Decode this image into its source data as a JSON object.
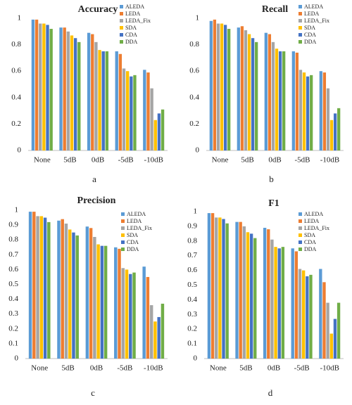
{
  "chart_data": [
    {
      "type": "bar",
      "title": "Accuracy",
      "caption": "a",
      "categories": [
        "None",
        "5dB",
        "0dB",
        "-5dB",
        "-10dB"
      ],
      "series": [
        {
          "name": "ALEDA",
          "color": "#5b9bd5",
          "values": [
            0.99,
            0.93,
            0.89,
            0.75,
            0.61
          ]
        },
        {
          "name": "LEDA",
          "color": "#ed7d31",
          "values": [
            0.99,
            0.93,
            0.88,
            0.73,
            0.59
          ]
        },
        {
          "name": "LEDA_Fix",
          "color": "#a5a5a5",
          "values": [
            0.96,
            0.9,
            0.82,
            0.62,
            0.47
          ]
        },
        {
          "name": "SDA",
          "color": "#ffc000",
          "values": [
            0.96,
            0.87,
            0.76,
            0.6,
            0.23
          ]
        },
        {
          "name": "CDA",
          "color": "#4472c4",
          "values": [
            0.95,
            0.85,
            0.75,
            0.56,
            0.28
          ]
        },
        {
          "name": "DDA",
          "color": "#70ad47",
          "values": [
            0.92,
            0.82,
            0.75,
            0.57,
            0.31
          ]
        }
      ],
      "ylim": [
        0,
        1
      ],
      "yticks": [
        0,
        0.2,
        0.4,
        0.6,
        0.8,
        1
      ],
      "legend": "upper right"
    },
    {
      "type": "bar",
      "title": "Recall",
      "caption": "b",
      "categories": [
        "None",
        "5dB",
        "0dB",
        "-5dB",
        "-10dB"
      ],
      "series": [
        {
          "name": "ALEDA",
          "color": "#5b9bd5",
          "values": [
            0.98,
            0.93,
            0.89,
            0.75,
            0.6
          ]
        },
        {
          "name": "LEDA",
          "color": "#ed7d31",
          "values": [
            0.99,
            0.94,
            0.88,
            0.74,
            0.59
          ]
        },
        {
          "name": "LEDA_Fix",
          "color": "#a5a5a5",
          "values": [
            0.96,
            0.91,
            0.82,
            0.61,
            0.47
          ]
        },
        {
          "name": "SDA",
          "color": "#ffc000",
          "values": [
            0.96,
            0.88,
            0.77,
            0.59,
            0.23
          ]
        },
        {
          "name": "CDA",
          "color": "#4472c4",
          "values": [
            0.95,
            0.85,
            0.75,
            0.56,
            0.28
          ]
        },
        {
          "name": "DDA",
          "color": "#70ad47",
          "values": [
            0.92,
            0.82,
            0.75,
            0.57,
            0.32
          ]
        }
      ],
      "ylim": [
        0,
        1
      ],
      "yticks": [
        0,
        0.2,
        0.4,
        0.6,
        0.8,
        1
      ],
      "legend": "upper right"
    },
    {
      "type": "bar",
      "title": "Precision",
      "caption": "c",
      "categories": [
        "None",
        "5dB",
        "0dB",
        "-5dB",
        "-10dB"
      ],
      "series": [
        {
          "name": "ALEDA",
          "color": "#5b9bd5",
          "values": [
            0.99,
            0.93,
            0.89,
            0.75,
            0.62
          ]
        },
        {
          "name": "LEDA",
          "color": "#ed7d31",
          "values": [
            0.99,
            0.94,
            0.88,
            0.74,
            0.55
          ]
        },
        {
          "name": "LEDA_Fix",
          "color": "#a5a5a5",
          "values": [
            0.96,
            0.91,
            0.82,
            0.61,
            0.36
          ]
        },
        {
          "name": "SDA",
          "color": "#ffc000",
          "values": [
            0.96,
            0.87,
            0.77,
            0.6,
            0.25
          ]
        },
        {
          "name": "CDA",
          "color": "#4472c4",
          "values": [
            0.95,
            0.85,
            0.76,
            0.57,
            0.28
          ]
        },
        {
          "name": "DDA",
          "color": "#70ad47",
          "values": [
            0.92,
            0.83,
            0.76,
            0.58,
            0.37
          ]
        }
      ],
      "ylim": [
        0,
        1
      ],
      "yticks": [
        0,
        0.1,
        0.2,
        0.3,
        0.4,
        0.5,
        0.6,
        0.7,
        0.8,
        0.9,
        1
      ],
      "legend": "upper right"
    },
    {
      "type": "bar",
      "title": "F1",
      "caption": "d",
      "categories": [
        "None",
        "5dB",
        "0dB",
        "-5dB",
        "-10dB"
      ],
      "series": [
        {
          "name": "ALEDA",
          "color": "#5b9bd5",
          "values": [
            0.99,
            0.93,
            0.89,
            0.75,
            0.61
          ]
        },
        {
          "name": "LEDA",
          "color": "#ed7d31",
          "values": [
            0.99,
            0.93,
            0.88,
            0.73,
            0.52
          ]
        },
        {
          "name": "LEDA_Fix",
          "color": "#a5a5a5",
          "values": [
            0.96,
            0.9,
            0.81,
            0.61,
            0.38
          ]
        },
        {
          "name": "SDA",
          "color": "#ffc000",
          "values": [
            0.96,
            0.86,
            0.76,
            0.6,
            0.17
          ]
        },
        {
          "name": "CDA",
          "color": "#4472c4",
          "values": [
            0.95,
            0.85,
            0.75,
            0.56,
            0.27
          ]
        },
        {
          "name": "DDA",
          "color": "#70ad47",
          "values": [
            0.92,
            0.82,
            0.76,
            0.57,
            0.38
          ]
        }
      ],
      "ylim": [
        0,
        1
      ],
      "yticks": [
        0,
        0.1,
        0.2,
        0.3,
        0.4,
        0.5,
        0.6,
        0.7,
        0.8,
        0.9,
        1
      ],
      "legend": "upper right"
    }
  ]
}
